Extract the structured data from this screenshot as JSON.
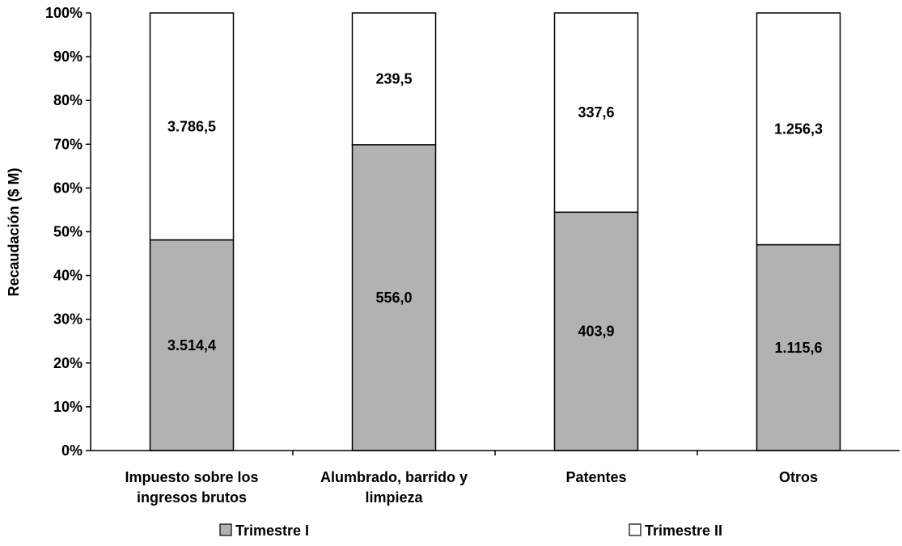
{
  "chart_data": {
    "type": "bar",
    "stacked": true,
    "normalized": true,
    "ylabel": "Recaudación ($ M)",
    "ylim": [
      0,
      100
    ],
    "y_ticks": [
      0,
      10,
      20,
      30,
      40,
      50,
      60,
      70,
      80,
      90,
      100
    ],
    "y_tick_labels": [
      "0%",
      "10%",
      "20%",
      "30%",
      "40%",
      "50%",
      "60%",
      "70%",
      "80%",
      "90%",
      "100%"
    ],
    "grid": false,
    "legend_position": "bottom",
    "categories": [
      [
        "Impuesto sobre los",
        "ingresos brutos"
      ],
      [
        "Alumbrado, barrido y",
        "limpieza"
      ],
      [
        "Patentes"
      ],
      [
        "Otros"
      ]
    ],
    "series": [
      {
        "name": "Trimestre I",
        "color": "#b2b2b2",
        "values": [
          3514.4,
          556.0,
          403.9,
          1115.6
        ],
        "labels": [
          "3.514,4",
          "556,0",
          "403,9",
          "1.115,6"
        ]
      },
      {
        "name": "Trimestre II",
        "color": "#ffffff",
        "values": [
          3786.5,
          239.5,
          337.6,
          1256.3
        ],
        "labels": [
          "3.786,5",
          "239,5",
          "337,6",
          "1.256,3"
        ]
      }
    ]
  }
}
